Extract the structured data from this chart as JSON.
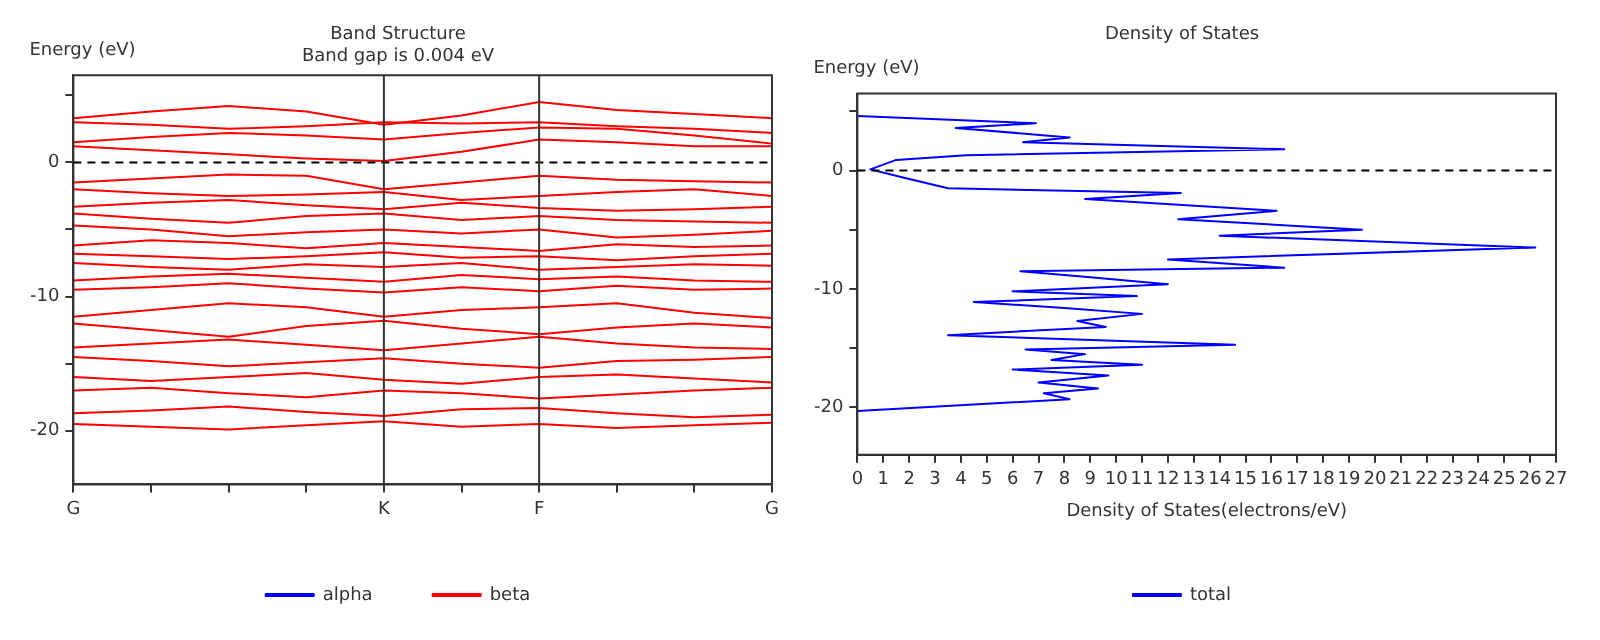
{
  "chart_data": [
    {
      "type": "line",
      "title": "Band Structure",
      "subtitle": "Band gap is 0.004 eV",
      "ylabel": "Energy (eV)",
      "categories": [
        "G",
        null,
        null,
        null,
        "K",
        null,
        "F",
        null,
        null,
        "G"
      ],
      "ylim": [
        -24,
        6.5
      ],
      "yticks": [
        {
          "value": 5,
          "label": null
        },
        0,
        {
          "value": -5,
          "label": null
        },
        -10,
        {
          "value": -15,
          "label": null
        },
        -20
      ],
      "legend": "bottom",
      "ref_lines": [
        {
          "axis": "y",
          "value": 0,
          "color": "#000000",
          "line_style": "dashed"
        },
        {
          "axis": "x",
          "value": "K",
          "color": "#333333"
        },
        {
          "axis": "x",
          "value": "F",
          "color": "#333333"
        }
      ],
      "series": [
        {
          "name": "alpha",
          "color": "#0000ff",
          "values": [
            null,
            null,
            null,
            null,
            null,
            null,
            null,
            null,
            null,
            null
          ]
        },
        {
          "name": "beta",
          "color": "#ff0000",
          "values": [
            3.3,
            3.8,
            4.2,
            3.8,
            2.8,
            3.5,
            4.5,
            3.9,
            3.6,
            3.3
          ]
        },
        {
          "color": "#ff0000",
          "values": [
            3.0,
            2.8,
            2.5,
            2.7,
            3.0,
            2.9,
            3.0,
            2.7,
            2.5,
            2.2
          ]
        },
        {
          "color": "#ff0000",
          "values": [
            1.5,
            1.9,
            2.2,
            2.0,
            1.7,
            2.2,
            2.6,
            2.5,
            2.0,
            1.4
          ]
        },
        {
          "color": "#ff0000",
          "values": [
            1.2,
            0.9,
            0.6,
            0.3,
            0.1,
            0.8,
            1.7,
            1.5,
            1.2,
            1.2
          ]
        },
        {
          "color": "#ff0000",
          "values": [
            -1.5,
            -1.2,
            -0.9,
            -1.0,
            -2.0,
            -1.5,
            -1.0,
            -1.3,
            -1.4,
            -1.5
          ]
        },
        {
          "color": "#ff0000",
          "values": [
            -2.0,
            -2.3,
            -2.5,
            -2.4,
            -2.2,
            -2.8,
            -2.5,
            -2.2,
            -2.0,
            -2.5
          ]
        },
        {
          "color": "#ff0000",
          "values": [
            -3.3,
            -3.0,
            -2.8,
            -3.2,
            -3.5,
            -3.0,
            -3.4,
            -3.6,
            -3.5,
            -3.3
          ]
        },
        {
          "color": "#ff0000",
          "values": [
            -3.8,
            -4.2,
            -4.5,
            -4.0,
            -3.8,
            -4.3,
            -4.0,
            -4.3,
            -4.4,
            -4.5
          ]
        },
        {
          "color": "#ff0000",
          "values": [
            -4.7,
            -5.0,
            -5.5,
            -5.2,
            -5.0,
            -5.3,
            -5.0,
            -5.6,
            -5.4,
            -5.1
          ]
        },
        {
          "color": "#ff0000",
          "values": [
            -6.2,
            -5.8,
            -6.0,
            -6.4,
            -6.0,
            -6.3,
            -6.6,
            -6.1,
            -6.3,
            -6.2
          ]
        },
        {
          "color": "#ff0000",
          "values": [
            -6.8,
            -7.0,
            -7.2,
            -7.0,
            -6.7,
            -7.1,
            -7.0,
            -7.3,
            -7.0,
            -6.8
          ]
        },
        {
          "color": "#ff0000",
          "values": [
            -7.5,
            -7.8,
            -8.0,
            -7.6,
            -7.8,
            -7.5,
            -8.0,
            -7.8,
            -7.6,
            -7.7
          ]
        },
        {
          "color": "#ff0000",
          "values": [
            -8.8,
            -8.5,
            -8.3,
            -8.6,
            -8.9,
            -8.4,
            -8.7,
            -8.5,
            -8.8,
            -8.9
          ]
        },
        {
          "color": "#ff0000",
          "values": [
            -9.5,
            -9.3,
            -9.0,
            -9.4,
            -9.7,
            -9.3,
            -9.6,
            -9.2,
            -9.5,
            -9.4
          ]
        },
        {
          "color": "#ff0000",
          "values": [
            -11.5,
            -11.0,
            -10.5,
            -10.8,
            -11.5,
            -11.0,
            -10.8,
            -10.5,
            -11.2,
            -11.6
          ]
        },
        {
          "color": "#ff0000",
          "values": [
            -12.0,
            -12.5,
            -13.0,
            -12.2,
            -11.8,
            -12.4,
            -12.8,
            -12.3,
            -12.0,
            -12.3
          ]
        },
        {
          "color": "#ff0000",
          "values": [
            -13.8,
            -13.5,
            -13.2,
            -13.6,
            -14.0,
            -13.5,
            -13.0,
            -13.5,
            -13.8,
            -13.9
          ]
        },
        {
          "color": "#ff0000",
          "values": [
            -14.5,
            -14.8,
            -15.2,
            -14.9,
            -14.6,
            -15.0,
            -15.3,
            -14.8,
            -14.7,
            -14.5
          ]
        },
        {
          "color": "#ff0000",
          "values": [
            -16.0,
            -16.3,
            -16.0,
            -15.7,
            -16.2,
            -16.5,
            -16.0,
            -15.8,
            -16.1,
            -16.4
          ]
        },
        {
          "color": "#ff0000",
          "values": [
            -17.0,
            -16.8,
            -17.2,
            -17.5,
            -17.0,
            -17.2,
            -17.6,
            -17.3,
            -17.0,
            -16.8
          ]
        },
        {
          "color": "#ff0000",
          "values": [
            -18.7,
            -18.5,
            -18.2,
            -18.6,
            -18.9,
            -18.4,
            -18.3,
            -18.7,
            -19.0,
            -18.8
          ]
        },
        {
          "color": "#ff0000",
          "values": [
            -19.5,
            -19.7,
            -19.9,
            -19.6,
            -19.3,
            -19.7,
            -19.5,
            -19.8,
            -19.6,
            -19.4
          ]
        }
      ]
    },
    {
      "type": "line",
      "title": "Density of States",
      "xlabel": "Density of States(electrons/eV)",
      "ylabel": "Energy (eV)",
      "xlim": [
        0,
        27
      ],
      "xticks": [
        0,
        1,
        2,
        3,
        4,
        5,
        6,
        7,
        8,
        9,
        10,
        11,
        12,
        13,
        14,
        15,
        16,
        17,
        18,
        19,
        20,
        21,
        22,
        23,
        24,
        25,
        26,
        27
      ],
      "ylim": [
        -24,
        6.5
      ],
      "yticks": [
        {
          "value": 5,
          "label": null
        },
        0,
        {
          "value": -5,
          "label": null
        },
        -10,
        {
          "value": -15,
          "label": null
        },
        -20
      ],
      "legend": "bottom",
      "ref_lines": [
        {
          "axis": "y",
          "value": 0,
          "color": "#000000",
          "line_style": "dashed"
        }
      ],
      "series": [
        {
          "name": "total",
          "color": "#0000ff",
          "x": [
            0,
            6.9,
            3.8,
            8.2,
            6.4,
            16.5,
            4.2,
            1.5,
            0.5,
            1.8,
            3.5,
            12.5,
            8.8,
            16.2,
            12.4,
            19.5,
            14,
            26.2,
            12,
            16.5,
            6.3,
            9,
            12,
            6,
            10.8,
            4.5,
            8,
            11,
            8.5,
            9.6,
            3.5,
            14.6,
            6.5,
            8.8,
            7.5,
            11,
            6,
            9.7,
            7,
            9.3,
            7.2,
            8.2,
            0
          ],
          "values": [
            4.6,
            4.0,
            3.6,
            2.8,
            2.4,
            1.8,
            1.3,
            0.9,
            0.1,
            -0.6,
            -1.5,
            -1.9,
            -2.4,
            -3.4,
            -4.1,
            -5.0,
            -5.5,
            -6.5,
            -7.5,
            -8.2,
            -8.5,
            -9,
            -9.6,
            -10.2,
            -10.6,
            -11.1,
            -11.6,
            -12.1,
            -12.7,
            -13.2,
            -13.9,
            -14.7,
            -15.1,
            -15.5,
            -16,
            -16.4,
            -16.8,
            -17.3,
            -17.9,
            -18.4,
            -18.8,
            -19.3,
            -20.3
          ]
        }
      ]
    }
  ]
}
